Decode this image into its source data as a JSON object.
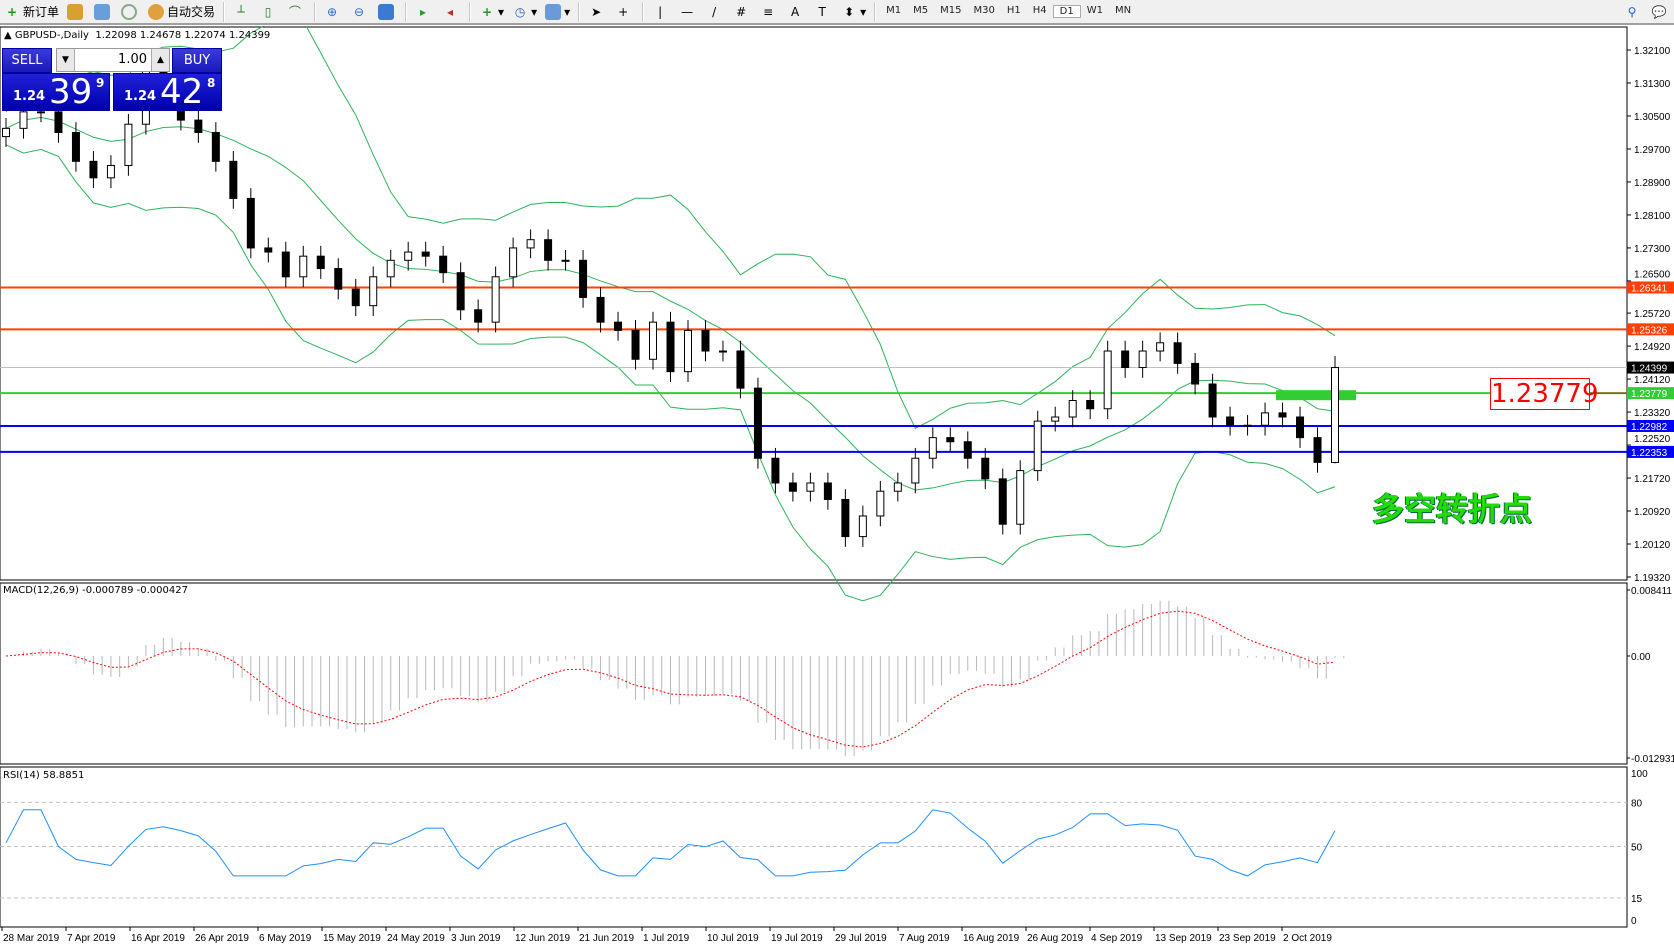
{
  "toolbar": {
    "new_order": "新订单",
    "auto_trading": "自动交易",
    "icons": [
      "new-order-icon",
      "market-watch-icon",
      "navigator-icon",
      "signals-icon",
      "auto-trading-icon",
      "bar-chart-icon",
      "candlestick-icon",
      "line-chart-icon",
      "zoom-in-icon",
      "zoom-out-icon",
      "tile-windows-icon",
      "chart-shift-icon",
      "autoscroll-icon",
      "indicators-icon",
      "periods-icon",
      "templates-icon",
      "cursor-icon",
      "crosshair-icon",
      "vertical-line-icon",
      "horizontal-line-icon",
      "trendline-icon",
      "equidistant-channel-icon",
      "fibonacci-icon",
      "text-icon",
      "text-label-icon",
      "arrows-icon",
      "search-icon",
      "chat-icon"
    ],
    "timeframes": [
      "M1",
      "M5",
      "M15",
      "M30",
      "H1",
      "H4",
      "D1",
      "W1",
      "MN"
    ],
    "active_timeframe": "D1"
  },
  "chart_header": {
    "symbol": "GBPUSD-,Daily",
    "ohlc": "1.22098 1.24678 1.22074 1.24399"
  },
  "trade_panel": {
    "sell_label": "SELL",
    "buy_label": "BUY",
    "lot": "1.00",
    "sell_small": "1.24",
    "sell_big": "39",
    "sell_sup": "9",
    "buy_small": "1.24",
    "buy_big": "42",
    "buy_sup": "8"
  },
  "annotation": {
    "label": "1.23779",
    "text": "多空转折点"
  },
  "macd_header": "MACD(12,26,9) -0.000789 -0.000427",
  "rsi_header": "RSI(14) 58.8851",
  "colors": {
    "resistance": "#ff4000",
    "support": "#0000ff",
    "pivot": "#32cd32",
    "bands": "#2db35a",
    "rsi": "#1e90ff",
    "macd_signal": "#ff0000",
    "macd_hist": "#b8b8b8"
  },
  "chart_data": {
    "type": "candlestick",
    "symbol": "GBPUSD",
    "timeframe": "Daily",
    "price_ticks": [
      "1.32100",
      "1.31300",
      "1.30500",
      "1.29700",
      "1.28900",
      "1.28100",
      "1.27300",
      "1.26500",
      "1.25720",
      "1.24920",
      "1.24120",
      "1.23320",
      "1.22520",
      "1.21720",
      "1.20920",
      "1.20120",
      "1.19320"
    ],
    "ylim": [
      1.1932,
      1.321
    ],
    "date_ticks": [
      "28 Mar 2019",
      "7 Apr 2019",
      "16 Apr 2019",
      "26 Apr 2019",
      "6 May 2019",
      "15 May 2019",
      "24 May 2019",
      "3 Jun 2019",
      "12 Jun 2019",
      "21 Jun 2019",
      "1 Jul 2019",
      "10 Jul 2019",
      "19 Jul 2019",
      "29 Jul 2019",
      "7 Aug 2019",
      "16 Aug 2019",
      "26 Aug 2019",
      "4 Sep 2019",
      "13 Sep 2019",
      "23 Sep 2019",
      "2 Oct 2019"
    ],
    "closes": [
      1.302,
      1.306,
      1.306,
      1.301,
      1.294,
      1.29,
      1.293,
      1.303,
      1.316,
      1.311,
      1.304,
      1.301,
      1.294,
      1.285,
      1.273,
      1.272,
      1.266,
      1.271,
      1.268,
      1.263,
      1.259,
      1.266,
      1.27,
      1.272,
      1.271,
      1.267,
      1.258,
      1.255,
      1.266,
      1.273,
      1.275,
      1.27,
      1.27,
      1.261,
      1.255,
      1.253,
      1.246,
      1.255,
      1.243,
      1.253,
      1.248,
      1.248,
      1.239,
      1.222,
      1.216,
      1.214,
      1.216,
      1.212,
      1.203,
      1.208,
      1.214,
      1.216,
      1.222,
      1.227,
      1.226,
      1.222,
      1.217,
      1.206,
      1.219,
      1.231,
      1.232,
      1.236,
      1.234,
      1.248,
      1.244,
      1.248,
      1.25,
      1.245,
      1.24,
      1.232,
      1.23,
      1.23,
      1.233,
      1.232,
      1.227,
      1.221,
      1.24399
    ],
    "last_bar": {
      "open": 1.22098,
      "high": 1.24678,
      "low": 1.22074,
      "close": 1.24399
    },
    "hlines": [
      {
        "price": 1.26341,
        "label": "1.26341",
        "kind": "resistance"
      },
      {
        "price": 1.25326,
        "label": "1.25326",
        "kind": "resistance"
      },
      {
        "price": 1.24399,
        "label": "1.24399",
        "kind": "bid"
      },
      {
        "price": 1.23779,
        "label": "1.23779",
        "kind": "pivot"
      },
      {
        "price": 1.22982,
        "label": "1.22982",
        "kind": "support"
      },
      {
        "price": 1.22353,
        "label": "1.22353",
        "kind": "support"
      }
    ],
    "indicators": {
      "bands": {
        "period": 20,
        "deviation": 2
      },
      "macd": {
        "fast": 12,
        "slow": 26,
        "signal": 9,
        "ticks": [
          "0.008411",
          "0.00",
          "-0.012931"
        ],
        "range": [
          -0.012931,
          0.008411
        ]
      },
      "rsi": {
        "period": 14,
        "ticks": [
          "100",
          "80",
          "50",
          "15",
          "0"
        ],
        "levels": [
          80,
          50,
          15
        ]
      }
    }
  }
}
